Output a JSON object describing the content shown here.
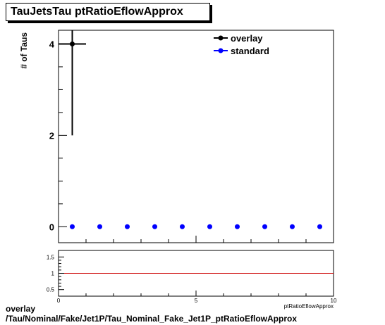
{
  "title": "TauJetsTau ptRatioEflowApprox",
  "footer": {
    "line1": "overlay",
    "line2": "/Tau/Nominal/Fake/Jet1P/Tau_Nominal_Fake_Jet1P_ptRatioEflowApprox"
  },
  "chart_data": [
    {
      "type": "scatter",
      "ylabel": "# of Taus",
      "xlim": [
        0,
        10
      ],
      "ylim": [
        -0.35,
        4.3
      ],
      "yticks": [
        0,
        2,
        4
      ],
      "legend_position": "top-right",
      "series": [
        {
          "name": "overlay",
          "color": "#000000",
          "marker": "filled-circle",
          "points": [
            {
              "x": 0.5,
              "y": 4,
              "xerr": 0.5,
              "yerr": 2
            }
          ]
        },
        {
          "name": "standard",
          "color": "#0000ff",
          "marker": "filled-circle",
          "points": [
            {
              "x": 0.5,
              "y": 0
            },
            {
              "x": 1.5,
              "y": 0
            },
            {
              "x": 2.5,
              "y": 0
            },
            {
              "x": 3.5,
              "y": 0
            },
            {
              "x": 4.5,
              "y": 0
            },
            {
              "x": 5.5,
              "y": 0
            },
            {
              "x": 6.5,
              "y": 0
            },
            {
              "x": 7.5,
              "y": 0
            },
            {
              "x": 8.5,
              "y": 0
            },
            {
              "x": 9.5,
              "y": 0
            }
          ]
        }
      ]
    },
    {
      "type": "line",
      "xlabel": "ptRatioEflowApprox",
      "xlim": [
        0,
        10
      ],
      "ylim": [
        0.3,
        1.7
      ],
      "xticks": [
        0,
        5,
        10
      ],
      "yticks": [
        0.5,
        1,
        1.5
      ],
      "reference_line": {
        "y": 1,
        "color": "#cc0000"
      }
    }
  ]
}
